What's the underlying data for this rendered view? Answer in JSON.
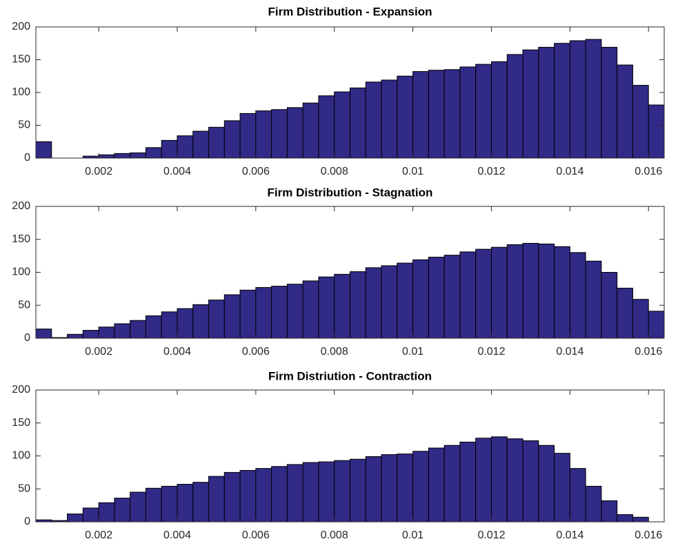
{
  "chart_data": [
    {
      "type": "histogram",
      "title": "Firm Distribution - Expansion",
      "color": "#312a87",
      "bins": [
        0.0004,
        0.0008,
        0.0012,
        0.0016,
        0.002,
        0.0024,
        0.0028,
        0.0032,
        0.0036,
        0.004,
        0.0044,
        0.0048,
        0.0052,
        0.0056,
        0.006,
        0.0064,
        0.0068,
        0.0072,
        0.0076,
        0.008,
        0.0084,
        0.0088,
        0.0092,
        0.0096,
        0.01,
        0.0104,
        0.0108,
        0.0112,
        0.0116,
        0.012,
        0.0124,
        0.0128,
        0.0132,
        0.0136,
        0.014,
        0.0144,
        0.0148,
        0.0152,
        0.0156,
        0.016,
        0.0164
      ],
      "values": [
        25,
        0,
        0,
        3,
        5,
        7,
        8,
        16,
        27,
        34,
        41,
        47,
        57,
        68,
        72,
        74,
        77,
        84,
        95,
        101,
        107,
        116,
        119,
        125,
        132,
        134,
        135,
        139,
        143,
        147,
        158,
        165,
        169,
        175,
        179,
        181,
        169,
        142,
        111,
        81
      ],
      "xlim": [
        0.0004,
        0.0164
      ],
      "xticks": [
        0.002,
        0.004,
        0.006,
        0.008,
        0.01,
        0.012,
        0.014,
        0.016
      ],
      "ylim": [
        0,
        200
      ],
      "yticks": [
        0,
        50,
        100,
        150,
        200
      ]
    },
    {
      "type": "histogram",
      "title": "Firm Distribution - Stagnation",
      "color": "#312a87",
      "bins": [
        0.0004,
        0.0008,
        0.0012,
        0.0016,
        0.002,
        0.0024,
        0.0028,
        0.0032,
        0.0036,
        0.004,
        0.0044,
        0.0048,
        0.0052,
        0.0056,
        0.006,
        0.0064,
        0.0068,
        0.0072,
        0.0076,
        0.008,
        0.0084,
        0.0088,
        0.0092,
        0.0096,
        0.01,
        0.0104,
        0.0108,
        0.0112,
        0.0116,
        0.012,
        0.0124,
        0.0128,
        0.0132,
        0.0136,
        0.014,
        0.0144,
        0.0148,
        0.0152,
        0.0156,
        0.016,
        0.0164
      ],
      "values": [
        14,
        1,
        6,
        12,
        17,
        22,
        27,
        34,
        40,
        45,
        51,
        58,
        66,
        73,
        77,
        79,
        82,
        87,
        93,
        97,
        101,
        107,
        110,
        114,
        119,
        123,
        126,
        131,
        135,
        138,
        142,
        144,
        143,
        139,
        130,
        117,
        100,
        76,
        59,
        41
      ],
      "xlim": [
        0.0004,
        0.0164
      ],
      "xticks": [
        0.002,
        0.004,
        0.006,
        0.008,
        0.01,
        0.012,
        0.014,
        0.016
      ],
      "ylim": [
        0,
        200
      ],
      "yticks": [
        0,
        50,
        100,
        150,
        200
      ]
    },
    {
      "type": "histogram",
      "title": "Firm Distriution - Contraction",
      "color": "#312a87",
      "bins": [
        0.0004,
        0.0008,
        0.0012,
        0.0016,
        0.002,
        0.0024,
        0.0028,
        0.0032,
        0.0036,
        0.004,
        0.0044,
        0.0048,
        0.0052,
        0.0056,
        0.006,
        0.0064,
        0.0068,
        0.0072,
        0.0076,
        0.008,
        0.0084,
        0.0088,
        0.0092,
        0.0096,
        0.01,
        0.0104,
        0.0108,
        0.0112,
        0.0116,
        0.012,
        0.0124,
        0.0128,
        0.0132,
        0.0136,
        0.014,
        0.0144,
        0.0148,
        0.0152,
        0.0156,
        0.016,
        0.0164
      ],
      "values": [
        3,
        2,
        12,
        21,
        29,
        36,
        45,
        51,
        54,
        57,
        60,
        69,
        75,
        78,
        81,
        84,
        87,
        90,
        91,
        93,
        95,
        99,
        102,
        103,
        107,
        112,
        116,
        121,
        127,
        129,
        126,
        123,
        116,
        104,
        81,
        54,
        32,
        11,
        7,
        0
      ],
      "xlim": [
        0.0004,
        0.0164
      ],
      "xticks": [
        0.002,
        0.004,
        0.006,
        0.008,
        0.01,
        0.012,
        0.014,
        0.016
      ],
      "ylim": [
        0,
        200
      ],
      "yticks": [
        0,
        50,
        100,
        150,
        200
      ]
    }
  ]
}
